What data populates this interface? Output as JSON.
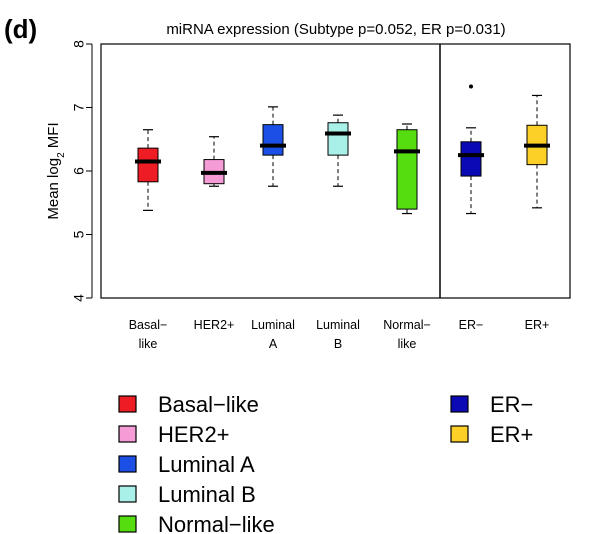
{
  "panel_label": "(d)",
  "chart_data": {
    "type": "box",
    "title": "miRNA expression (Subtype p=0.052, ER p=0.031)",
    "ylabel_main": "Mean log",
    "ylabel_sub": "2",
    "ylabel_tail": " MFI",
    "ylim": [
      4,
      8
    ],
    "yticks": [
      "4",
      "5",
      "6",
      "7",
      "8"
    ],
    "groups": [
      {
        "key": "basal",
        "label": [
          "Basal−",
          "like"
        ],
        "color": "#ee1c24",
        "whisker_low": 5.38,
        "q1": 5.83,
        "median": 6.15,
        "q3": 6.36,
        "whisker_high": 6.65,
        "outliers": []
      },
      {
        "key": "her2",
        "label": [
          "HER2+"
        ],
        "color": "#f59bd6",
        "whisker_low": 5.76,
        "q1": 5.8,
        "median": 5.97,
        "q3": 6.18,
        "whisker_high": 6.54,
        "outliers": []
      },
      {
        "key": "luma",
        "label": [
          "Luminal",
          "A"
        ],
        "color": "#1c4fe6",
        "whisker_low": 5.76,
        "q1": 6.25,
        "median": 6.4,
        "q3": 6.73,
        "whisker_high": 7.01,
        "outliers": []
      },
      {
        "key": "lumb",
        "label": [
          "Luminal",
          "B"
        ],
        "color": "#a8f0e8",
        "whisker_low": 5.76,
        "q1": 6.25,
        "median": 6.59,
        "q3": 6.76,
        "whisker_high": 6.88,
        "outliers": []
      },
      {
        "key": "normal",
        "label": [
          "Normal−",
          "like"
        ],
        "color": "#55dd10",
        "whisker_low": 5.33,
        "q1": 5.4,
        "median": 6.31,
        "q3": 6.65,
        "whisker_high": 6.74,
        "outliers": []
      },
      {
        "key": "erneg",
        "label": [
          "ER−"
        ],
        "color": "#0a0ab4",
        "whisker_low": 5.33,
        "q1": 5.92,
        "median": 6.25,
        "q3": 6.46,
        "whisker_high": 6.68,
        "outliers": [
          7.33
        ]
      },
      {
        "key": "erpos",
        "label": [
          "ER+"
        ],
        "color": "#fcd026",
        "whisker_low": 5.42,
        "q1": 6.1,
        "median": 6.4,
        "q3": 6.72,
        "whisker_high": 7.19,
        "outliers": []
      }
    ],
    "legend_left": [
      {
        "label": "Basal−like",
        "color": "#ee1c24"
      },
      {
        "label": "HER2+",
        "color": "#f59bd6"
      },
      {
        "label": "Luminal A",
        "color": "#1c4fe6"
      },
      {
        "label": "Luminal B",
        "color": "#a8f0e8"
      },
      {
        "label": "Normal−like",
        "color": "#55dd10"
      }
    ],
    "legend_right": [
      {
        "label": "ER−",
        "color": "#0a0ab4"
      },
      {
        "label": "ER+",
        "color": "#fcd026"
      }
    ]
  }
}
